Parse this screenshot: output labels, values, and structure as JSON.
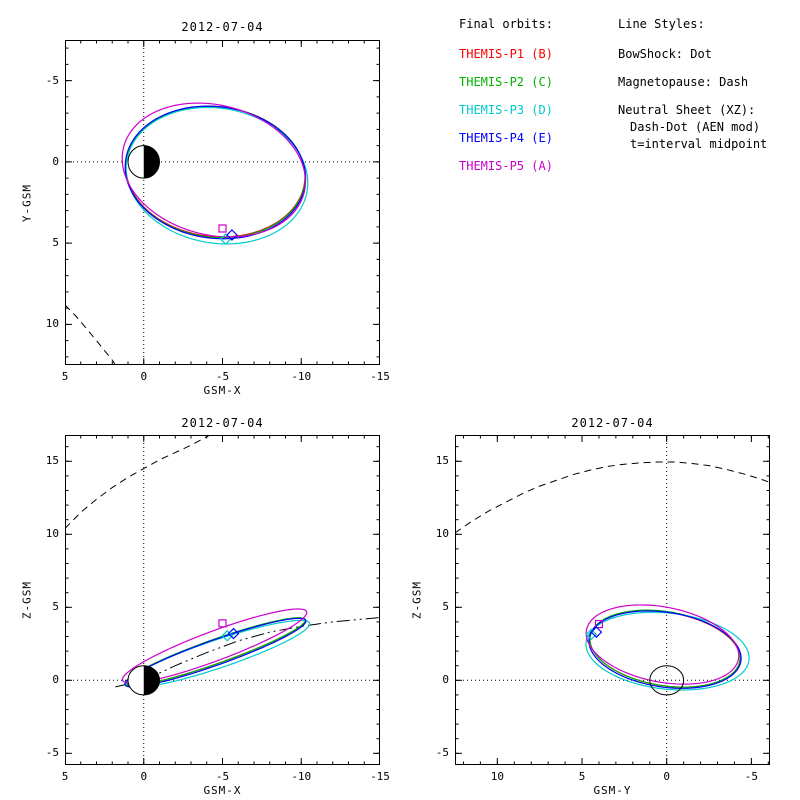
{
  "page": {
    "background": "#ffffff",
    "foreground": "#000000"
  },
  "legend": {
    "title": "Final orbits:",
    "entries": [
      {
        "label": "THEMIS-P1 (B)",
        "color": "#ff0000"
      },
      {
        "label": "THEMIS-P2 (C)",
        "color": "#00b300"
      },
      {
        "label": "THEMIS-P3 (D)",
        "color": "#00cccc"
      },
      {
        "label": "THEMIS-P4 (E)",
        "color": "#0000ff"
      },
      {
        "label": "THEMIS-P5 (A)",
        "color": "#cc00cc"
      }
    ]
  },
  "line_styles": {
    "title": "Line Styles:",
    "items": [
      "BowShock: Dot",
      "Magnetopause: Dash",
      "Neutral Sheet (XZ):",
      "Dash-Dot (AEN mod)",
      "t=interval midpoint"
    ]
  },
  "chart_data": [
    {
      "id": "xy",
      "type": "line",
      "title": "2012-07-04",
      "xlabel": "GSM-X",
      "ylabel": "Y-GSM",
      "xrange": [
        5,
        -15
      ],
      "yrange": [
        -7.5,
        12.5
      ],
      "xticks": [
        5,
        0,
        -5,
        -10,
        -15
      ],
      "yticks": [
        -5,
        0,
        5,
        10
      ],
      "zero_lines": true,
      "earth": {
        "style": "half-filled",
        "radius": 1
      },
      "orbits": [
        {
          "name": "THEMIS-P1",
          "color": "#ff0000",
          "ellipse": {
            "cx": -4.55,
            "cy": 0.6,
            "rx": 5.7,
            "ry": 4.0,
            "rot": -6
          }
        },
        {
          "name": "THEMIS-P2",
          "color": "#00b300",
          "ellipse": {
            "cx": -4.55,
            "cy": 0.62,
            "rx": 5.72,
            "ry": 4.02,
            "rot": -6
          }
        },
        {
          "name": "THEMIS-P3",
          "color": "#00cccc",
          "ellipse": {
            "cx": -4.65,
            "cy": 0.85,
            "rx": 5.8,
            "ry": 4.15,
            "rot": -9
          }
        },
        {
          "name": "THEMIS-P4",
          "color": "#0000ff",
          "ellipse": {
            "cx": -4.55,
            "cy": 0.65,
            "rx": 5.75,
            "ry": 4.05,
            "rot": -7
          }
        },
        {
          "name": "THEMIS-P5",
          "color": "#cc00cc",
          "ellipse": {
            "cx": -4.45,
            "cy": 0.5,
            "rx": 5.9,
            "ry": 4.0,
            "rot": -13
          }
        }
      ],
      "ref_curves": [
        {
          "name": "magnetopause",
          "style": "dash",
          "points": [
            [
              5,
              8.8
            ],
            [
              4.3,
              9.5
            ],
            [
              3.6,
              10.3
            ],
            [
              3.0,
              11.0
            ],
            [
              2.5,
              11.6
            ],
            [
              2.0,
              12.2
            ],
            [
              1.8,
              12.5
            ]
          ]
        }
      ],
      "markers": [
        {
          "shape": "square",
          "color": "#cc00cc",
          "x": -5.0,
          "y": 4.1
        },
        {
          "shape": "diamond",
          "color": "#00cccc",
          "x": -5.2,
          "y": 4.75
        },
        {
          "shape": "diamond",
          "color": "#0000ff",
          "x": -5.6,
          "y": 4.5
        }
      ]
    },
    {
      "id": "xz",
      "type": "line",
      "title": "2012-07-04",
      "xlabel": "GSM-X",
      "ylabel": "Z-GSM",
      "xrange": [
        5,
        -15
      ],
      "yrange": [
        16.8,
        -5.8
      ],
      "xticks": [
        5,
        0,
        -5,
        -10,
        -15
      ],
      "yticks": [
        15,
        10,
        5,
        0,
        -5
      ],
      "zero_lines": true,
      "earth": {
        "style": "half-filled",
        "radius": 1
      },
      "orbits": [
        {
          "name": "THEMIS-P1",
          "color": "#ff0000",
          "ellipse": {
            "cx": -4.55,
            "cy": 1.95,
            "rx": 6.1,
            "ry": 0.8,
            "rot": 159
          }
        },
        {
          "name": "THEMIS-P2",
          "color": "#00b300",
          "ellipse": {
            "cx": -4.55,
            "cy": 1.97,
            "rx": 6.1,
            "ry": 0.82,
            "rot": 159
          }
        },
        {
          "name": "THEMIS-P3",
          "color": "#00cccc",
          "ellipse": {
            "cx": -4.7,
            "cy": 1.8,
            "rx": 6.2,
            "ry": 0.95,
            "rot": 160
          }
        },
        {
          "name": "THEMIS-P4",
          "color": "#0000ff",
          "ellipse": {
            "cx": -4.55,
            "cy": 1.9,
            "rx": 6.15,
            "ry": 0.85,
            "rot": 159
          }
        },
        {
          "name": "THEMIS-P5",
          "color": "#cc00cc",
          "ellipse": {
            "cx": -4.5,
            "cy": 2.35,
            "rx": 6.3,
            "ry": 1.0,
            "rot": 158
          }
        }
      ],
      "ref_curves": [
        {
          "name": "magnetopause",
          "style": "dash",
          "points": [
            [
              5,
              10.4
            ],
            [
              4.0,
              11.5
            ],
            [
              3.0,
              12.4
            ],
            [
              2.0,
              13.2
            ],
            [
              1.0,
              13.9
            ],
            [
              0,
              14.5
            ],
            [
              -1.0,
              15.1
            ],
            [
              -2.0,
              15.6
            ],
            [
              -3.0,
              16.1
            ],
            [
              -4.2,
              16.8
            ]
          ]
        },
        {
          "name": "neutral-sheet",
          "style": "dashdot",
          "points": [
            [
              1.8,
              -0.45
            ],
            [
              0.8,
              -0.2
            ],
            [
              0,
              0.1
            ],
            [
              -1,
              0.5
            ],
            [
              -2,
              1.0
            ],
            [
              -3,
              1.45
            ],
            [
              -4,
              1.9
            ],
            [
              -5,
              2.3
            ],
            [
              -6,
              2.7
            ],
            [
              -7,
              3.0
            ],
            [
              -8,
              3.3
            ],
            [
              -9,
              3.5
            ],
            [
              -10,
              3.7
            ],
            [
              -11,
              3.85
            ],
            [
              -12,
              4.0
            ],
            [
              -13,
              4.1
            ],
            [
              -14,
              4.2
            ],
            [
              -15,
              4.3
            ]
          ]
        }
      ],
      "markers": [
        {
          "shape": "square",
          "color": "#cc00cc",
          "x": -5.0,
          "y": 3.9
        },
        {
          "shape": "diamond",
          "color": "#00cccc",
          "x": -5.3,
          "y": 3.05
        },
        {
          "shape": "diamond",
          "color": "#0000ff",
          "x": -5.7,
          "y": 3.2
        }
      ]
    },
    {
      "id": "yz",
      "type": "line",
      "title": "2012-07-04",
      "xlabel": "GSM-Y",
      "ylabel": "Z-GSM",
      "xrange": [
        12.5,
        -6.1
      ],
      "yrange": [
        16.8,
        -5.8
      ],
      "xticks": [
        10,
        5,
        0,
        -5
      ],
      "yticks": [
        15,
        10,
        5,
        0,
        -5
      ],
      "zero_lines": true,
      "earth": {
        "style": "open",
        "radius": 1
      },
      "orbits": [
        {
          "name": "THEMIS-P1",
          "color": "#ff0000",
          "ellipse": {
            "cx": 0.1,
            "cy": 2.15,
            "rx": 4.5,
            "ry": 2.5,
            "rot": 12
          }
        },
        {
          "name": "THEMIS-P2",
          "color": "#00b300",
          "ellipse": {
            "cx": 0.1,
            "cy": 2.17,
            "rx": 4.5,
            "ry": 2.52,
            "rot": 12
          }
        },
        {
          "name": "THEMIS-P3",
          "color": "#00cccc",
          "ellipse": {
            "cx": -0.05,
            "cy": 2.0,
            "rx": 4.85,
            "ry": 2.6,
            "rot": 8
          }
        },
        {
          "name": "THEMIS-P4",
          "color": "#0000ff",
          "ellipse": {
            "cx": 0.1,
            "cy": 2.1,
            "rx": 4.55,
            "ry": 2.55,
            "rot": 11
          }
        },
        {
          "name": "THEMIS-P5",
          "color": "#cc00cc",
          "ellipse": {
            "cx": 0.25,
            "cy": 2.45,
            "rx": 4.6,
            "ry": 2.55,
            "rot": 14
          }
        }
      ],
      "ref_curves": [
        {
          "name": "magnetopause",
          "style": "dash",
          "points": [
            [
              12.5,
              10.1
            ],
            [
              11.5,
              10.9
            ],
            [
              10.5,
              11.6
            ],
            [
              9.5,
              12.2
            ],
            [
              8.5,
              12.8
            ],
            [
              7.5,
              13.3
            ],
            [
              6.5,
              13.7
            ],
            [
              5.5,
              14.1
            ],
            [
              4.5,
              14.4
            ],
            [
              3.5,
              14.65
            ],
            [
              2.5,
              14.8
            ],
            [
              1.5,
              14.9
            ],
            [
              0.5,
              14.95
            ],
            [
              -0.5,
              14.95
            ],
            [
              -1.5,
              14.85
            ],
            [
              -2.5,
              14.7
            ],
            [
              -3.5,
              14.45
            ],
            [
              -4.5,
              14.15
            ],
            [
              -5.5,
              13.8
            ],
            [
              -6.1,
              13.55
            ]
          ]
        }
      ],
      "markers": [
        {
          "shape": "square",
          "color": "#cc00cc",
          "x": 4.0,
          "y": 3.85
        },
        {
          "shape": "diamond",
          "color": "#00cccc",
          "x": 4.45,
          "y": 3.15
        },
        {
          "shape": "diamond",
          "color": "#0000ff",
          "x": 4.15,
          "y": 3.3
        }
      ]
    }
  ]
}
